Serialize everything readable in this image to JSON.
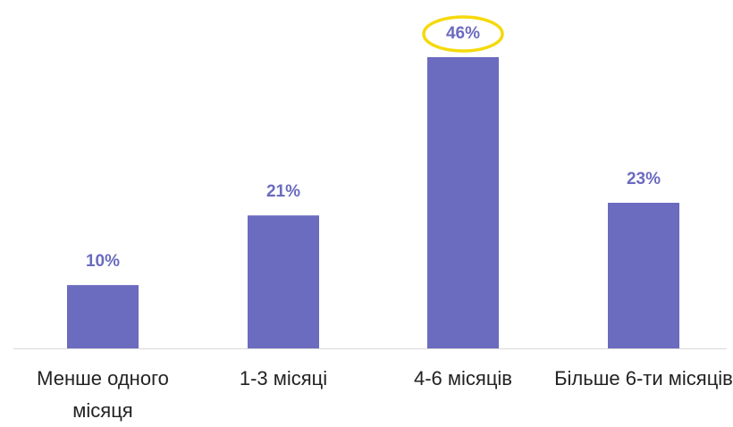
{
  "chart_data": {
    "type": "bar",
    "categories": [
      "Менше одного місяця",
      "1-3 місяці",
      "4-6 місяців",
      "Більше 6-ти місяців"
    ],
    "values": [
      10,
      21,
      46,
      23
    ],
    "value_labels": [
      "10%",
      "21%",
      "46%",
      "23%"
    ],
    "color": "#6b6bbf"
  }
}
